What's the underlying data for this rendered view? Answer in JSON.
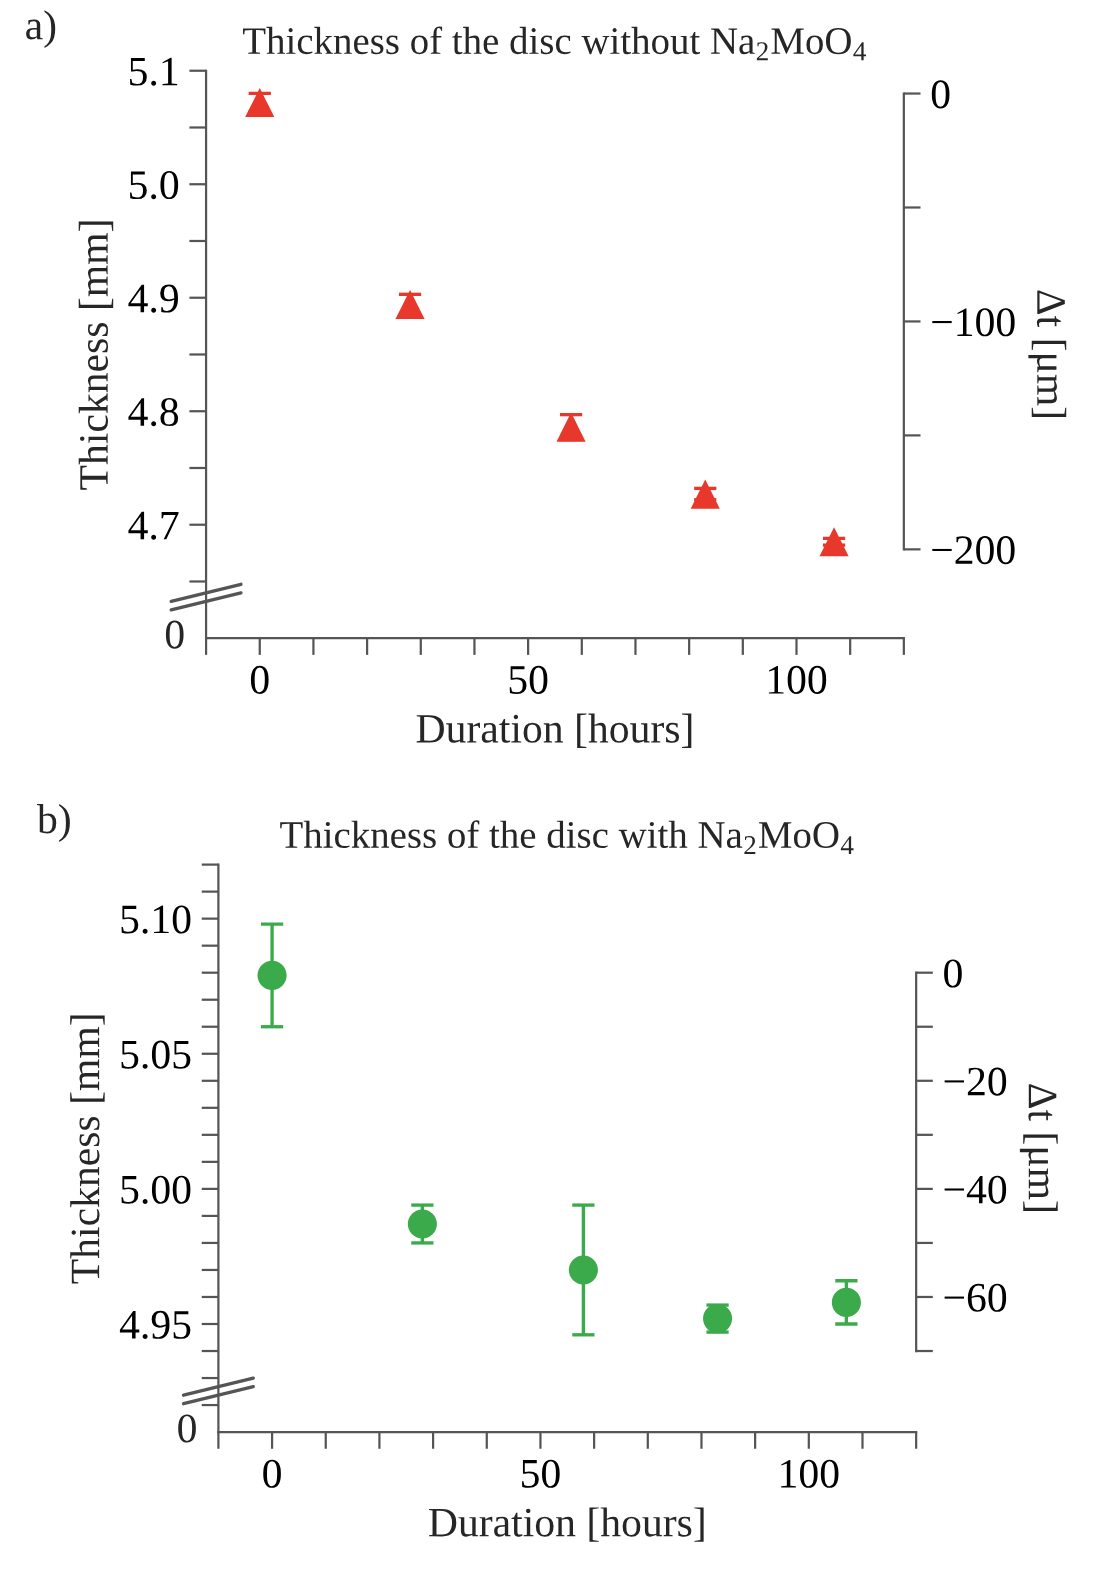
{
  "chart_data": [
    {
      "type": "scatter",
      "title": "Thickness of the disc without Na$_{2}$MoO$_{4}$",
      "xlabel": "Duration [hours]",
      "ylabel": "Thickness [mm]",
      "y2label": "Δt [μm]",
      "annotations": [
        "a)",
        "0"
      ],
      "marker": "triangle",
      "grid": false,
      "legend": false,
      "series": [
        {
          "color": "#e8372b",
          "x": [
            0,
            28,
            58,
            83,
            107
          ],
          "values": [
            5.072,
            4.894,
            4.786,
            4.727,
            4.685
          ],
          "errors": [
            0.008,
            0.009,
            0.011,
            0.005,
            0.003
          ]
        }
      ],
      "xlim": [
        -10,
        120
      ],
      "xticks": [
        {
          "value": -10,
          "label": null
        },
        0,
        {
          "value": 10,
          "label": null
        },
        {
          "value": 20,
          "label": null
        },
        {
          "value": 30,
          "label": null
        },
        {
          "value": 40,
          "label": null
        },
        50,
        {
          "value": 60,
          "label": null
        },
        {
          "value": 70,
          "label": null
        },
        {
          "value": 80,
          "label": null
        },
        {
          "value": 90,
          "label": null
        },
        100,
        {
          "value": 110,
          "label": null
        },
        {
          "value": 120,
          "label": null
        }
      ],
      "ylim": [
        4.6,
        5.1
      ],
      "yticks": [
        {
          "value": 4.65,
          "label": null
        },
        4.7,
        {
          "value": 4.75,
          "label": null
        },
        4.8,
        {
          "value": 4.85,
          "label": null
        },
        4.9,
        {
          "value": 4.95,
          "label": null
        },
        {
          "value": 5.0,
          "label": "5.0"
        },
        {
          "value": 5.05,
          "label": null
        },
        5.1
      ],
      "y2lim": [
        -239,
        10
      ],
      "y2ticks": [
        {
          "value": -200,
          "label": "−200"
        },
        {
          "value": -150,
          "label": null
        },
        {
          "value": -100,
          "label": "−100"
        },
        {
          "value": -50,
          "label": null
        },
        0
      ]
    },
    {
      "type": "scatter",
      "title": "Thickness of the disc with Na$_{2}$MoO$_{4}$",
      "xlabel": "Duration [hours]",
      "ylabel": "Thickness [mm]",
      "y2label": "Δt [μm]",
      "annotations": [
        "b)",
        "0"
      ],
      "marker": "circle",
      "grid": false,
      "legend": false,
      "series": [
        {
          "color": "#3aaa4a",
          "x": [
            0,
            28,
            58,
            83,
            107
          ],
          "values": [
            5.079,
            4.987,
            4.97,
            4.952,
            4.958
          ],
          "errors": [
            0.019,
            0.007,
            0.024,
            0.005,
            0.008
          ]
        }
      ],
      "xlim": [
        -10,
        120
      ],
      "xticks": [
        {
          "value": -10,
          "label": null
        },
        0,
        {
          "value": 10,
          "label": null
        },
        {
          "value": 20,
          "label": null
        },
        {
          "value": 30,
          "label": null
        },
        {
          "value": 40,
          "label": null
        },
        50,
        {
          "value": 60,
          "label": null
        },
        {
          "value": 70,
          "label": null
        },
        {
          "value": 80,
          "label": null
        },
        {
          "value": 90,
          "label": null
        },
        100,
        {
          "value": 110,
          "label": null
        },
        {
          "value": 120,
          "label": null
        }
      ],
      "ylim": [
        4.91,
        5.12
      ],
      "yticks": [
        {
          "value": 4.92,
          "label": null
        },
        {
          "value": 4.93,
          "label": null
        },
        {
          "value": 4.94,
          "label": null
        },
        {
          "value": 4.95,
          "label": "4.95"
        },
        {
          "value": 4.96,
          "label": null
        },
        {
          "value": 4.97,
          "label": null
        },
        {
          "value": 4.98,
          "label": null
        },
        {
          "value": 4.99,
          "label": null
        },
        {
          "value": 5.0,
          "label": "5.00"
        },
        {
          "value": 5.01,
          "label": null
        },
        {
          "value": 5.02,
          "label": null
        },
        {
          "value": 5.03,
          "label": null
        },
        {
          "value": 5.04,
          "label": null
        },
        {
          "value": 5.05,
          "label": "5.05"
        },
        {
          "value": 5.06,
          "label": null
        },
        {
          "value": 5.07,
          "label": null
        },
        {
          "value": 5.08,
          "label": null
        },
        {
          "value": 5.09,
          "label": null
        },
        {
          "value": 5.1,
          "label": "5.10"
        },
        {
          "value": 5.11,
          "label": null
        },
        {
          "value": 5.12,
          "label": null
        }
      ],
      "y2lim": [
        -85,
        20
      ],
      "y2ticks": [
        {
          "value": -70,
          "label": null
        },
        {
          "value": -60,
          "label": "−60"
        },
        {
          "value": -50,
          "label": null
        },
        {
          "value": -40,
          "label": "−40"
        },
        {
          "value": -30,
          "label": null
        },
        {
          "value": -20,
          "label": "−20"
        },
        {
          "value": -10,
          "label": null
        },
        0
      ]
    }
  ]
}
